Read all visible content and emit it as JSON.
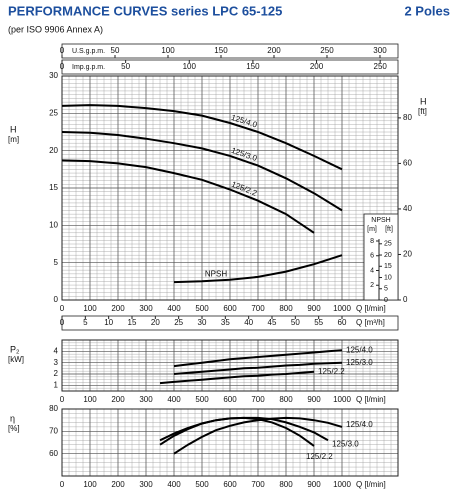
{
  "header": {
    "title": "PERFORMANCE CURVES series LPC 65-125",
    "poles": "2 Poles",
    "subtitle": "(per ISO 9906 Annex A)"
  },
  "chart_data": [
    {
      "type": "line",
      "ylabel": "H",
      "yunit": "[m]",
      "y2label": "H",
      "y2unit": "[ft]",
      "xlabel": "Q [l/min]",
      "x": [
        0,
        100,
        200,
        300,
        400,
        500,
        600,
        700,
        800,
        900,
        1000
      ],
      "xlim": [
        0,
        1200
      ],
      "xticks": [
        0,
        100,
        200,
        300,
        400,
        500,
        600,
        700,
        800,
        900,
        1000
      ],
      "ylim": [
        0,
        30
      ],
      "yticks": [
        0,
        5,
        10,
        15,
        20,
        25,
        30
      ],
      "y2lim": [
        0,
        98.4
      ],
      "y2ticks": [
        0,
        20,
        40,
        60,
        80
      ],
      "grid": true,
      "color": "#000000",
      "series": [
        {
          "name": "125/4.0",
          "values": [
            26,
            26.1,
            26,
            25.7,
            25.3,
            24.7,
            23.7,
            22.5,
            21,
            19.3,
            17.5
          ]
        },
        {
          "name": "125/3.0",
          "values": [
            22.5,
            22.4,
            22.1,
            21.6,
            21,
            20.3,
            19.3,
            18,
            16.3,
            14.3,
            12
          ]
        },
        {
          "name": "125/2.2",
          "values": [
            18.7,
            18.6,
            18.3,
            17.8,
            17,
            16.1,
            14.8,
            13.3,
            11.5,
            9,
            null
          ]
        },
        {
          "name": "NPSH",
          "axis": "npsh",
          "values": [
            null,
            null,
            null,
            null,
            2.4,
            2.5,
            2.7,
            3.1,
            3.8,
            4.8,
            6.0
          ]
        }
      ],
      "x_axes": [
        {
          "position": "top",
          "label": "U.S.g.p.m.",
          "lim": [
            0,
            317
          ],
          "ticks": [
            0,
            50,
            100,
            150,
            200,
            250,
            300
          ]
        },
        {
          "position": "top",
          "label": "Imp.g.p.m.",
          "lim": [
            0,
            264
          ],
          "ticks": [
            0,
            50,
            100,
            150,
            200,
            250
          ]
        },
        {
          "position": "bottom",
          "label": "Q [m³/h]",
          "lim": [
            0,
            72
          ],
          "ticks": [
            0,
            5,
            10,
            15,
            20,
            25,
            30,
            35,
            40,
            45,
            50,
            55,
            60
          ]
        }
      ],
      "npsh_axis": {
        "title": "NPSH",
        "units": [
          "[m]",
          "[ft]"
        ],
        "lim": [
          0,
          8
        ],
        "ticks": [
          2,
          4,
          6,
          8
        ],
        "ft_lim": [
          0,
          26.25
        ],
        "ft_ticks": [
          0,
          5,
          10,
          15,
          20,
          25
        ]
      }
    },
    {
      "type": "line",
      "ylabel": "P₂",
      "yunit": "[kW]",
      "xlabel": "Q [l/min]",
      "x": [
        350,
        400,
        450,
        500,
        550,
        600,
        650,
        700,
        750,
        800,
        850,
        900,
        950,
        1000
      ],
      "xlim": [
        0,
        1200
      ],
      "xticks": [
        0,
        100,
        200,
        300,
        400,
        500,
        600,
        700,
        800,
        900,
        1000
      ],
      "ylim": [
        0.5,
        5
      ],
      "yticks": [
        1,
        2,
        3,
        4
      ],
      "grid": true,
      "color": "#000000",
      "series": [
        {
          "name": "125/4.0",
          "values": [
            null,
            2.7,
            2.85,
            3.0,
            3.15,
            3.3,
            3.4,
            3.5,
            3.6,
            3.7,
            3.8,
            3.9,
            4.0,
            4.1
          ]
        },
        {
          "name": "125/3.0",
          "values": [
            null,
            2.0,
            2.1,
            2.2,
            2.3,
            2.4,
            2.5,
            2.55,
            2.65,
            2.75,
            2.8,
            2.9,
            2.95,
            3.0
          ]
        },
        {
          "name": "125/2.2",
          "values": [
            1.2,
            1.3,
            1.4,
            1.5,
            1.6,
            1.7,
            1.8,
            1.85,
            1.95,
            2.0,
            2.1,
            2.2,
            null,
            null
          ]
        }
      ]
    },
    {
      "type": "line",
      "ylabel": "η",
      "yunit": "[%]",
      "xlabel": "Q [l/min]",
      "x": [
        350,
        400,
        450,
        500,
        550,
        600,
        650,
        700,
        750,
        800,
        850,
        900,
        950,
        1000
      ],
      "xlim": [
        0,
        1200
      ],
      "xticks": [
        0,
        100,
        200,
        300,
        400,
        500,
        600,
        700,
        800,
        900,
        1000
      ],
      "ylim": [
        50,
        80
      ],
      "yticks": [
        60,
        70,
        80
      ],
      "grid": true,
      "color": "#000000",
      "series": [
        {
          "name": "125/4.0",
          "values": [
            null,
            60,
            64,
            67.5,
            70.5,
            72.5,
            74,
            75,
            75.7,
            76,
            75.8,
            75,
            73.8,
            72
          ]
        },
        {
          "name": "125/3.0",
          "values": [
            66,
            69,
            71.5,
            73.5,
            75,
            75.8,
            76,
            76,
            75.5,
            74,
            72,
            69.5,
            66,
            null
          ]
        },
        {
          "name": "125/2.2",
          "values": [
            64,
            68,
            71,
            73.5,
            75,
            75.8,
            76,
            75.5,
            74,
            71.5,
            68,
            63.5,
            null,
            null
          ]
        }
      ]
    }
  ]
}
